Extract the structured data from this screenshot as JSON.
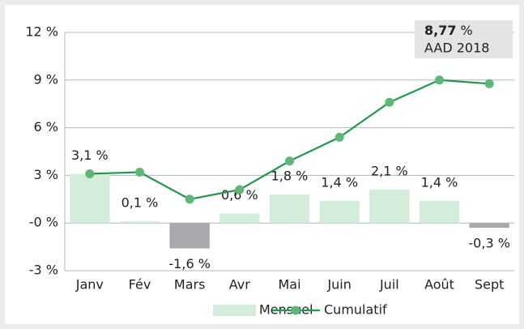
{
  "chart_data": {
    "type": "bar_line",
    "categories": [
      "Janv",
      "Fév",
      "Mars",
      "Avr",
      "Mai",
      "Juin",
      "Juil",
      "Août",
      "Sept"
    ],
    "series": [
      {
        "name": "Mensuel",
        "type": "bar",
        "color": "#d4edda",
        "negative_color": "#a7a9ac",
        "values": [
          3.1,
          0.1,
          -1.6,
          0.6,
          1.8,
          1.4,
          2.1,
          1.4,
          -0.3
        ],
        "value_labels": [
          "3,1 %",
          "0,1 %",
          "-1,6 %",
          "0,6 %",
          "1,8 %",
          "1,4 %",
          "2,1 %",
          "1,4 %",
          "-0,3 %"
        ]
      },
      {
        "name": "Cumulatif",
        "type": "line",
        "color": "#1f9a4c",
        "marker_color": "#5db877",
        "values": [
          3.1,
          3.2,
          1.5,
          2.1,
          3.9,
          5.4,
          7.6,
          9.0,
          8.77
        ]
      }
    ],
    "ylim": [
      -3,
      12
    ],
    "yticks": [
      {
        "value": -3,
        "label": "-3 %"
      },
      {
        "value": 0,
        "label": "-0 %"
      },
      {
        "value": 3,
        "label": "3 %"
      },
      {
        "value": 6,
        "label": "6 %"
      },
      {
        "value": 9,
        "label": "9 %"
      },
      {
        "value": 12,
        "label": "12 %"
      }
    ],
    "grid": true,
    "legend": "bottom",
    "annotation": {
      "value": "8,77",
      "suffix": "%",
      "label": "AAD 2018"
    }
  }
}
